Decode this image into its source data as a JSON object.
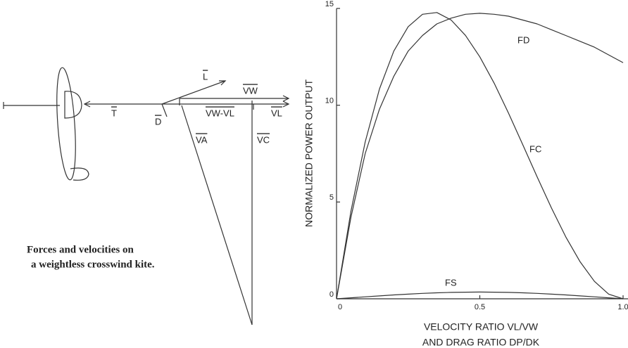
{
  "diagram": {
    "caption": [
      "Forces and velocities on",
      "a weightless crosswind kite."
    ],
    "labels": {
      "t": "T",
      "d": "D",
      "l": "L",
      "vw": "VW",
      "vw_vl": "VW-VL",
      "vl": "VL",
      "va": "VA",
      "vc": "VC"
    }
  },
  "chart_data": {
    "type": "line",
    "ylabel": "NORMALIZED POWER OUTPUT",
    "xlabel": [
      "VELOCITY RATIO VL/VW",
      "AND DRAG RATIO DP/DK"
    ],
    "x": [
      0,
      0.05,
      0.1,
      0.15,
      0.2,
      0.25,
      0.3,
      0.35,
      0.4,
      0.45,
      0.5,
      0.55,
      0.6,
      0.65,
      0.7,
      0.75,
      0.8,
      0.85,
      0.9,
      0.95,
      1.0
    ],
    "series": [
      {
        "name": "FD",
        "color": "#222",
        "values": [
          0,
          4.2,
          7.5,
          9.8,
          11.5,
          12.8,
          13.6,
          14.2,
          14.5,
          14.7,
          14.75,
          14.7,
          14.6,
          14.4,
          14.2,
          13.9,
          13.6,
          13.3,
          13.0,
          12.6,
          12.2
        ]
      },
      {
        "name": "FC",
        "color": "#222",
        "values": [
          0,
          4.51,
          8.1,
          10.84,
          12.8,
          14.06,
          14.7,
          14.79,
          14.4,
          13.61,
          12.5,
          11.14,
          9.6,
          7.96,
          6.3,
          4.69,
          3.2,
          1.91,
          0.9,
          0.24,
          0
        ]
      },
      {
        "name": "FS",
        "color": "#222",
        "values": [
          0,
          0.05,
          0.1,
          0.15,
          0.2,
          0.24,
          0.28,
          0.31,
          0.33,
          0.34,
          0.35,
          0.34,
          0.33,
          0.31,
          0.28,
          0.24,
          0.2,
          0.15,
          0.1,
          0.05,
          0
        ]
      }
    ],
    "xlim": [
      0,
      1.0
    ],
    "ylim": [
      0,
      15
    ],
    "xticks": [
      0,
      0.5,
      {
        "value": 1.0,
        "label": "1.0"
      }
    ],
    "yticks": [
      0,
      5,
      10,
      15
    ]
  }
}
